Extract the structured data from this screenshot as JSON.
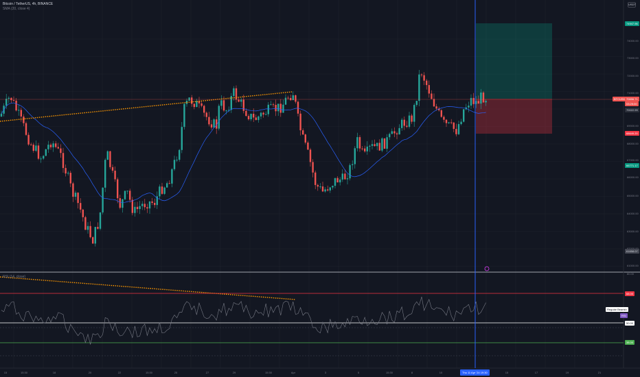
{
  "header": {
    "symbol_line": "Bitcoin / TetherUS, 4h, BINANCE",
    "indicator_line": "SMA (20, close 4)"
  },
  "currency_button": "USDT",
  "price_axis": {
    "ticks": [
      "74000.00",
      "73000.00",
      "72000.00",
      "71000.00",
      "69000.00",
      "68000.00",
      "67000.00",
      "66000.00",
      "65000.00",
      "64000.00",
      "63000.00",
      "62000.00",
      "61000.00"
    ],
    "tags": {
      "target": "74947.96",
      "symbol": "BTCUSDT",
      "last_price": "70656.71",
      "countdown": "03:25:00",
      "sma_value": "70022.99",
      "stop": "68649.20",
      "low_tag": "66771.17",
      "bottom_tag": "61658.07"
    }
  },
  "oscillator": {
    "title": "RSI (14, close)",
    "levels": {
      "upper": "80.00",
      "overbought": "68.00",
      "middle": "50.00",
      "oversold": "38.00"
    },
    "divergence_label": "Regular Bearish",
    "divergence_tag": "RSI"
  },
  "time_axis": {
    "labels": [
      "15",
      "15:30",
      "18",
      "20",
      "22",
      "15:30",
      "25",
      "27",
      "29",
      "15:30",
      "Apr",
      "3",
      "5",
      "15:30",
      "8",
      "10",
      "15:30",
      "15",
      "17",
      "19",
      "21"
    ],
    "highlight": "Thu 11 Apr '24  19:30"
  },
  "colors": {
    "background": "#131722",
    "up": "#26a69a",
    "down": "#ef5350",
    "sma": "#2962ff",
    "trend": "#ff9800",
    "cursor": "#2962ff",
    "rsi_line": "#787b86",
    "overbought_line": "#f23645",
    "oversold_line": "#4caf50"
  }
}
